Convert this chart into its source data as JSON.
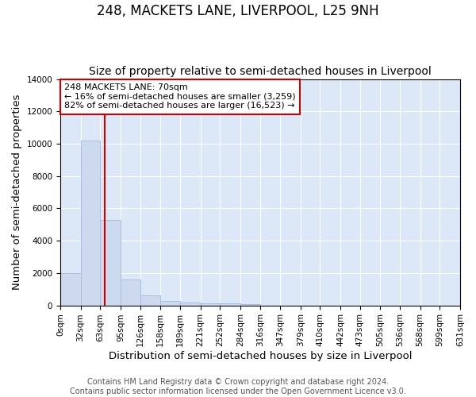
{
  "title": "248, MACKETS LANE, LIVERPOOL, L25 9NH",
  "subtitle": "Size of property relative to semi-detached houses in Liverpool",
  "xlabel": "Distribution of semi-detached houses by size in Liverpool",
  "ylabel": "Number of semi-detached properties",
  "bin_edges": [
    0,
    32,
    63,
    95,
    126,
    158,
    189,
    221,
    252,
    284,
    316,
    347,
    379,
    410,
    442,
    473,
    505,
    536,
    568,
    599,
    631
  ],
  "bar_heights": [
    2000,
    10200,
    5300,
    1600,
    620,
    280,
    170,
    130,
    110,
    100,
    0,
    0,
    0,
    0,
    0,
    0,
    0,
    0,
    0,
    0
  ],
  "bar_color": "#ccd9ee",
  "bar_edgecolor": "#a8bedd",
  "property_size": 70,
  "red_line_color": "#cc0000",
  "ylim": [
    0,
    14000
  ],
  "yticks": [
    0,
    2000,
    4000,
    6000,
    8000,
    10000,
    12000,
    14000
  ],
  "annotation_text": "248 MACKETS LANE: 70sqm\n← 16% of semi-detached houses are smaller (3,259)\n82% of semi-detached houses are larger (16,523) →",
  "annotation_box_color": "#ffffff",
  "annotation_box_edgecolor": "#cc0000",
  "footer_line1": "Contains HM Land Registry data © Crown copyright and database right 2024.",
  "footer_line2": "Contains public sector information licensed under the Open Government Licence v3.0.",
  "background_color": "#dce8f8",
  "title_fontsize": 12,
  "subtitle_fontsize": 10,
  "tick_label_fontsize": 7.5,
  "axis_label_fontsize": 9.5,
  "annotation_fontsize": 8,
  "footer_fontsize": 7
}
